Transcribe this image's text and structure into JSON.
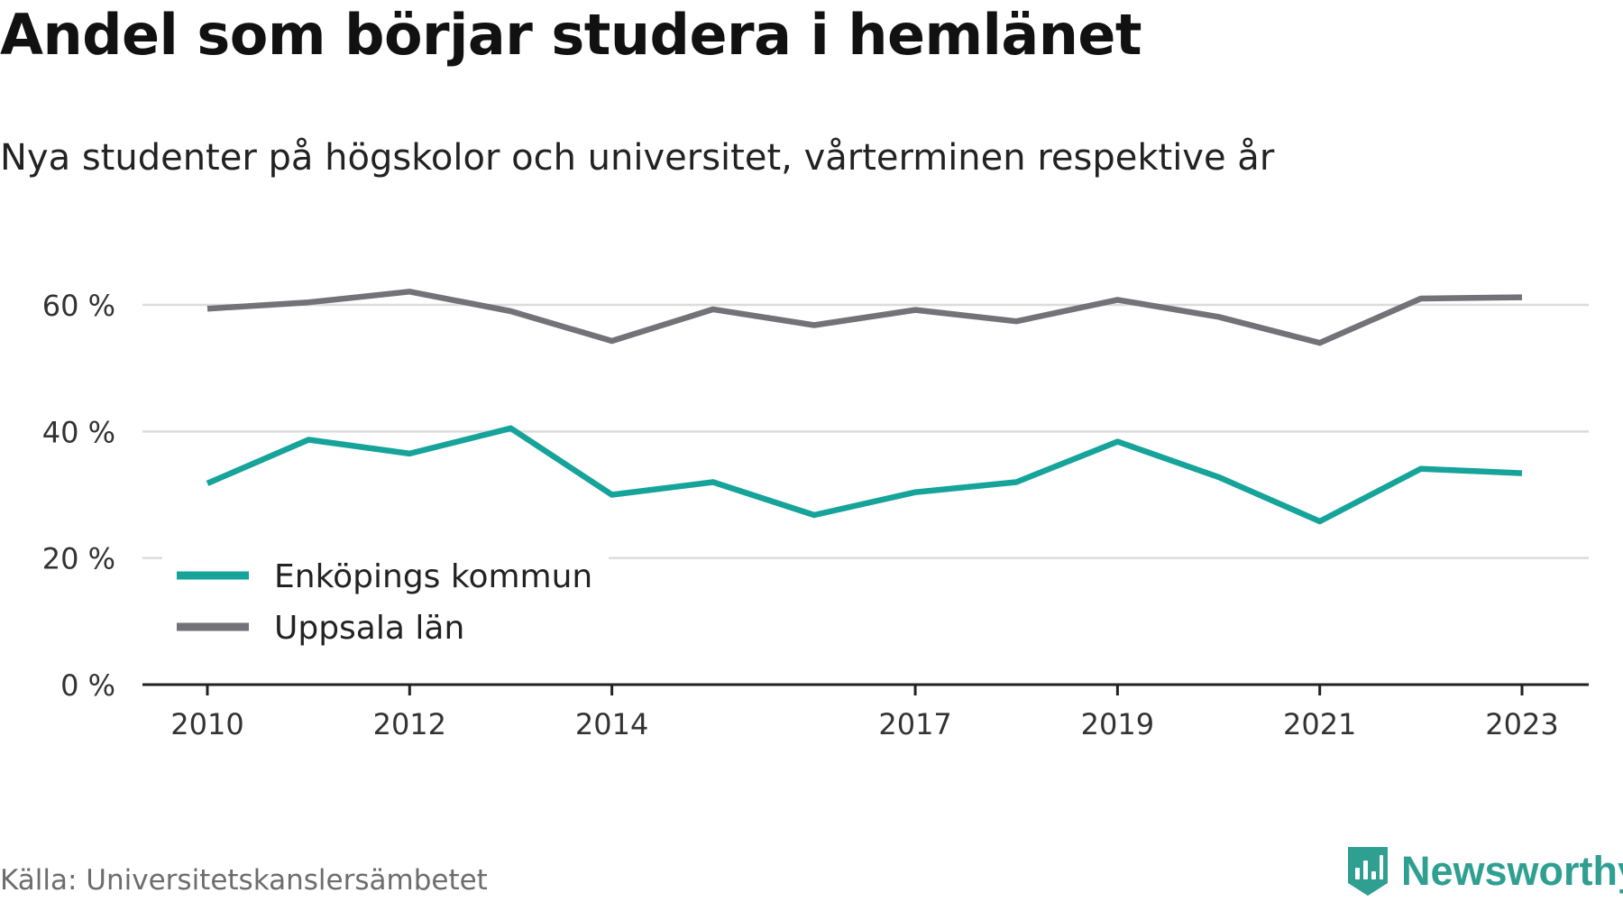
{
  "title": "Andel som börjar studera i hemlänet",
  "subtitle": "Nya studenter på högskolor och universitet, vårterminen respektive år",
  "source": "Källa: Universitetskanslersämbetet",
  "brand": {
    "name": "Newsworthy",
    "icon": "newsworthy-logo-icon",
    "color": "#2f9f92"
  },
  "chart_data": {
    "type": "line",
    "title": "",
    "xlabel": "",
    "ylabel": "",
    "x": [
      2010,
      2011,
      2012,
      2013,
      2014,
      2015,
      2016,
      2017,
      2018,
      2019,
      2020,
      2021,
      2022,
      2023
    ],
    "x_ticks": [
      "2010",
      "2012",
      "2014",
      "2017",
      "2019",
      "2021",
      "2023"
    ],
    "y_ticks": [
      {
        "value": 0,
        "label": "0 %"
      },
      {
        "value": 20,
        "label": "20 %"
      },
      {
        "value": 40,
        "label": "40 %"
      },
      {
        "value": 60,
        "label": "60 %"
      }
    ],
    "ylim": [
      0,
      70
    ],
    "grid": true,
    "legend_position": "bottom-left",
    "series": [
      {
        "name": "Enköpings kommun",
        "color": "#15a39a",
        "values": [
          31.8,
          38.7,
          36.5,
          40.5,
          30.0,
          32.0,
          26.8,
          30.4,
          32.0,
          38.4,
          32.8,
          25.8,
          34.1,
          33.4
        ]
      },
      {
        "name": "Uppsala län",
        "color": "#737278",
        "values": [
          59.4,
          60.4,
          62.1,
          59.0,
          54.3,
          59.3,
          56.8,
          59.2,
          57.4,
          60.8,
          58.1,
          54.0,
          61.0,
          61.2
        ]
      }
    ]
  }
}
